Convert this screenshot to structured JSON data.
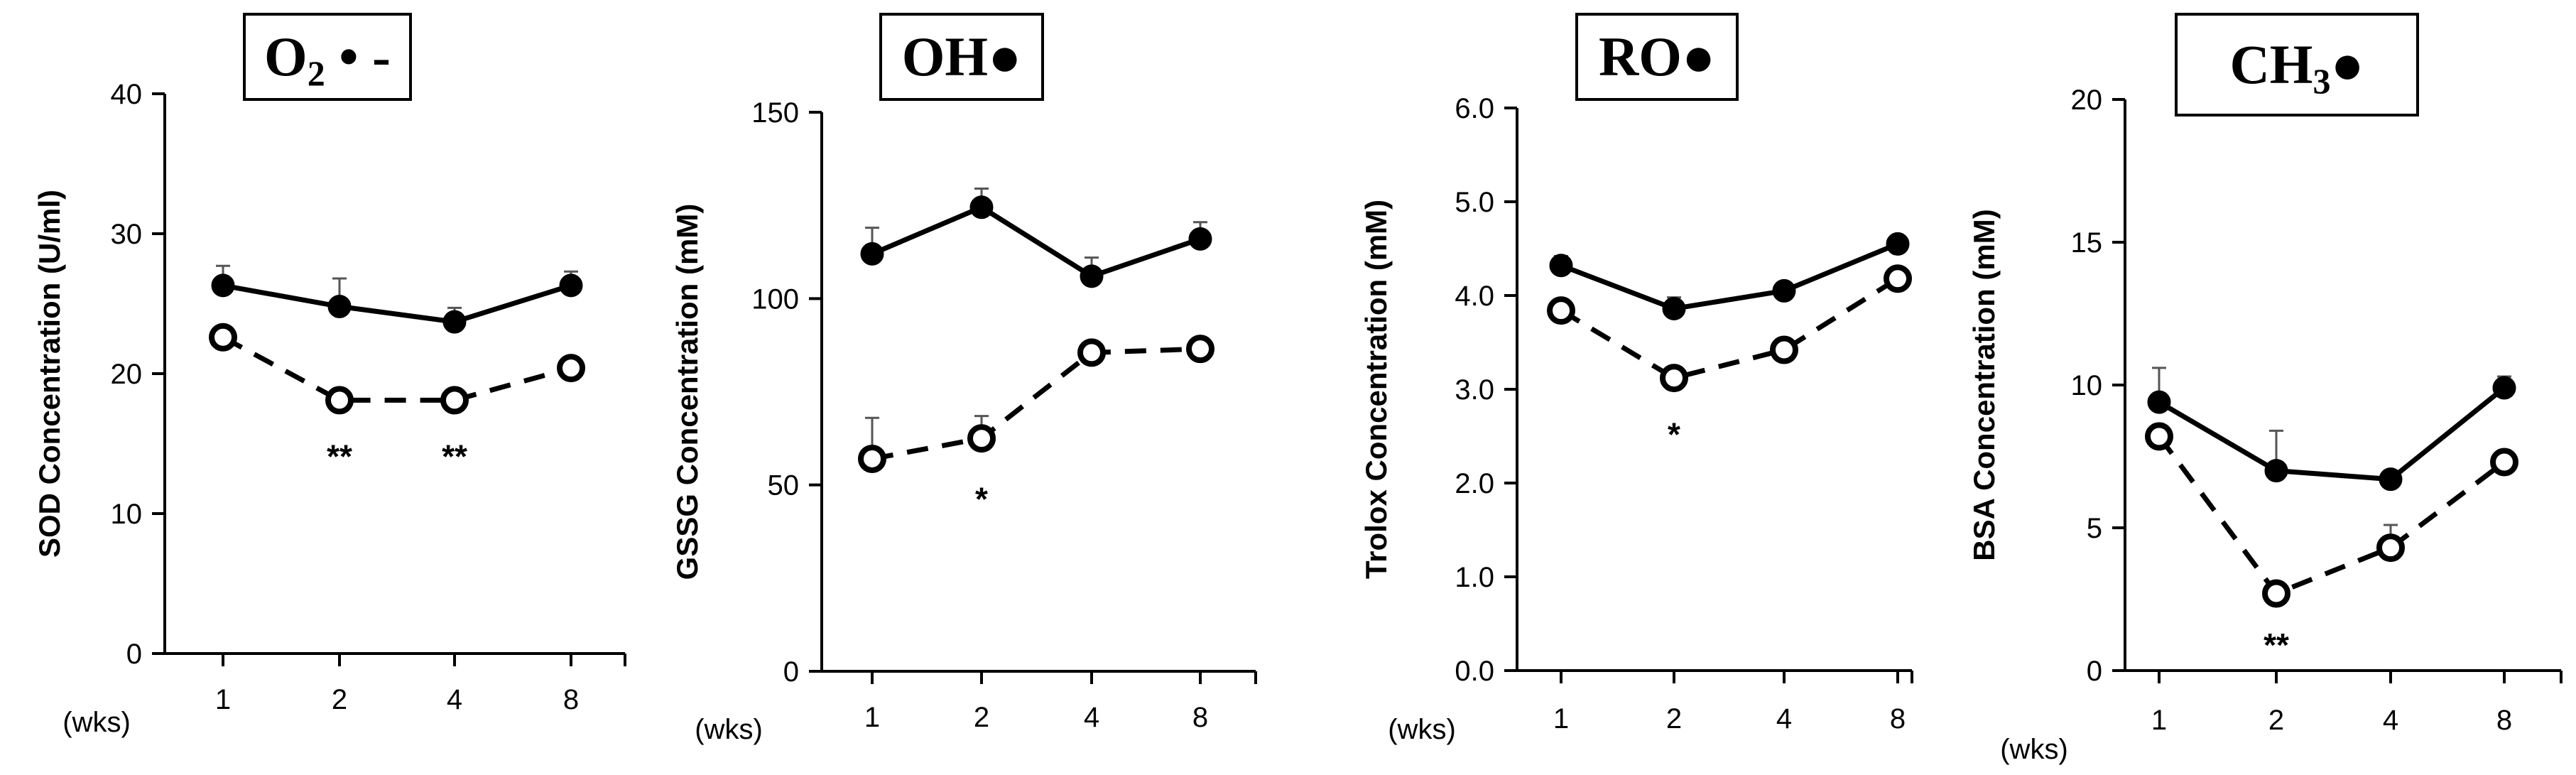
{
  "chart_data": [
    {
      "type": "line",
      "title_main": "O",
      "title_sub": "2",
      "title_suffix": " • -",
      "ylabel": "SOD Concentration (U/ml)",
      "xlabel_unit": "(wks)",
      "categories": [
        "1",
        "2",
        "4",
        "8"
      ],
      "ylim": [
        0,
        40
      ],
      "yticks": [
        "0",
        "10",
        "20",
        "30",
        "40"
      ],
      "series": [
        {
          "name": "filled",
          "style": "solid",
          "values": [
            26.3,
            24.8,
            23.7,
            26.3
          ],
          "error": [
            1.4,
            2.0,
            1.0,
            1.0
          ]
        },
        {
          "name": "open",
          "style": "dashed",
          "values": [
            22.6,
            18.1,
            18.1,
            20.4
          ],
          "error": [
            0,
            0,
            0,
            0
          ]
        }
      ],
      "annotations": [
        {
          "category": "2",
          "text": "**",
          "y": 14.3
        },
        {
          "category": "4",
          "text": "**",
          "y": 14.3
        }
      ]
    },
    {
      "type": "line",
      "title_main": "OH●",
      "title_sub": "",
      "title_suffix": "",
      "ylabel": "GSSG Concentration (mM)",
      "xlabel_unit": "(wks)",
      "categories": [
        "1",
        "2",
        "4",
        "8"
      ],
      "ylim": [
        0,
        150
      ],
      "yticks": [
        "0",
        "50",
        "100",
        "150"
      ],
      "series": [
        {
          "name": "filled",
          "style": "solid",
          "values": [
            112,
            124.5,
            106,
            116
          ],
          "error": [
            7,
            5,
            5,
            4.5
          ]
        },
        {
          "name": "open",
          "style": "dashed",
          "values": [
            57,
            62.5,
            85.5,
            86.5
          ],
          "error": [
            11,
            6,
            0,
            0
          ]
        }
      ],
      "annotations": [
        {
          "category": "2",
          "text": "*",
          "y": 47
        }
      ]
    },
    {
      "type": "line",
      "title_main": "RO●",
      "title_sub": "",
      "title_suffix": "",
      "ylabel": "Trolox Concentration (mM)",
      "xlabel_unit": "(wks)",
      "categories": [
        "1",
        "2",
        "4",
        "8"
      ],
      "ylim": [
        0,
        6
      ],
      "yticks": [
        "0.0",
        "1.0",
        "2.0",
        "3.0",
        "4.0",
        "5.0",
        "6.0"
      ],
      "series": [
        {
          "name": "filled",
          "style": "solid",
          "values": [
            4.32,
            3.86,
            4.05,
            4.55
          ],
          "error": [
            0.1,
            0.12,
            0,
            0
          ]
        },
        {
          "name": "open",
          "style": "dashed",
          "values": [
            3.84,
            3.12,
            3.42,
            4.18
          ],
          "error": [
            0,
            0.1,
            0,
            0
          ]
        }
      ],
      "annotations": [
        {
          "category": "2",
          "text": "*",
          "y": 2.55
        }
      ]
    },
    {
      "type": "line",
      "title_main": "CH",
      "title_sub": "3",
      "title_suffix": "●",
      "ylabel": "BSA Concentration (mM)",
      "xlabel_unit": "(wks)",
      "categories": [
        "1",
        "2",
        "4",
        "8"
      ],
      "ylim": [
        0,
        20
      ],
      "yticks": [
        "0",
        "5",
        "10",
        "15",
        "20"
      ],
      "series": [
        {
          "name": "filled",
          "style": "solid",
          "values": [
            9.4,
            7.0,
            6.7,
            9.9
          ],
          "error": [
            1.2,
            1.4,
            0,
            0.4
          ]
        },
        {
          "name": "open",
          "style": "dashed",
          "values": [
            8.2,
            2.7,
            4.3,
            7.3
          ],
          "error": [
            0,
            0,
            0.8,
            0
          ]
        }
      ],
      "annotations": [
        {
          "category": "2",
          "text": "**",
          "y": 1.0
        }
      ]
    }
  ]
}
